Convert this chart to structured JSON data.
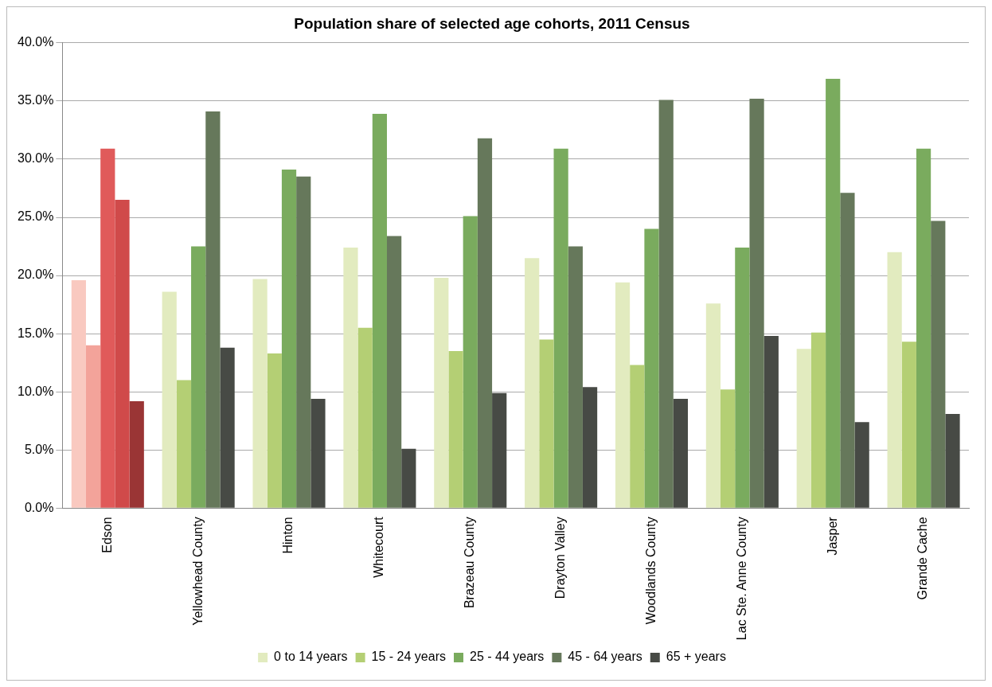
{
  "chart_data": {
    "type": "bar",
    "title": "Population share of selected age cohorts, 2011 Census",
    "categories": [
      "Edson",
      "Yellowhead County",
      "Hinton",
      "Whitecourt",
      "Brazeau County",
      "Drayton Valley",
      "Woodlands County",
      "Lac Ste. Anne County",
      "Jasper",
      "Grande Cache"
    ],
    "series": [
      {
        "name": "0 to 14 years",
        "color": "#e2ebbf",
        "colors": [
          "#f9c9c0",
          "#e2ebbf",
          "#e2ebbf",
          "#e2ebbf",
          "#e2ebbf",
          "#e2ebbf",
          "#e2ebbf",
          "#e2ebbf",
          "#e2ebbf",
          "#e2ebbf"
        ],
        "values": [
          19.6,
          18.6,
          19.7,
          22.4,
          19.8,
          21.5,
          19.4,
          17.6,
          13.7,
          22.0
        ]
      },
      {
        "name": "15 - 24 years",
        "color": "#b4cf74",
        "colors": [
          "#f3a39a",
          "#b4cf74",
          "#b4cf74",
          "#b4cf74",
          "#b4cf74",
          "#b4cf74",
          "#b4cf74",
          "#b4cf74",
          "#b4cf74",
          "#b4cf74"
        ],
        "values": [
          14.0,
          11.0,
          13.3,
          15.5,
          13.5,
          14.5,
          12.3,
          10.2,
          15.1,
          14.3
        ]
      },
      {
        "name": "25 - 44 years",
        "color": "#7aab5e",
        "colors": [
          "#e05a5a",
          "#7aab5e",
          "#7aab5e",
          "#7aab5e",
          "#7aab5e",
          "#7aab5e",
          "#7aab5e",
          "#7aab5e",
          "#7aab5e",
          "#7aab5e"
        ],
        "values": [
          30.9,
          22.5,
          29.1,
          33.9,
          25.1,
          30.9,
          24.0,
          22.4,
          36.9,
          30.9
        ]
      },
      {
        "name": "45 - 64 years",
        "color": "#66785b",
        "colors": [
          "#d04a4a",
          "#66785b",
          "#66785b",
          "#66785b",
          "#66785b",
          "#66785b",
          "#66785b",
          "#66785b",
          "#66785b",
          "#66785b"
        ],
        "values": [
          26.5,
          34.1,
          28.5,
          23.4,
          31.8,
          22.5,
          35.1,
          35.2,
          27.1,
          24.7
        ]
      },
      {
        "name": "65 + years",
        "color": "#474a45",
        "colors": [
          "#9a3535",
          "#474a45",
          "#474a45",
          "#474a45",
          "#474a45",
          "#474a45",
          "#474a45",
          "#474a45",
          "#474a45",
          "#474a45"
        ],
        "values": [
          9.2,
          13.8,
          9.4,
          5.1,
          9.9,
          10.4,
          9.4,
          14.8,
          7.4,
          8.1
        ]
      }
    ],
    "ylim": [
      0,
      40
    ],
    "yticks": [
      {
        "value": 0,
        "label": "0.0%"
      },
      {
        "value": 5,
        "label": "5.0%"
      },
      {
        "value": 10,
        "label": "10.0%"
      },
      {
        "value": 15,
        "label": "15.0%"
      },
      {
        "value": 20,
        "label": "20.0%"
      },
      {
        "value": 25,
        "label": "25.0%"
      },
      {
        "value": 30,
        "label": "30.0%"
      },
      {
        "value": 35,
        "label": "35.0%"
      },
      {
        "value": 40,
        "label": "40.0%"
      }
    ],
    "grid": "y",
    "legend": "bottom"
  }
}
